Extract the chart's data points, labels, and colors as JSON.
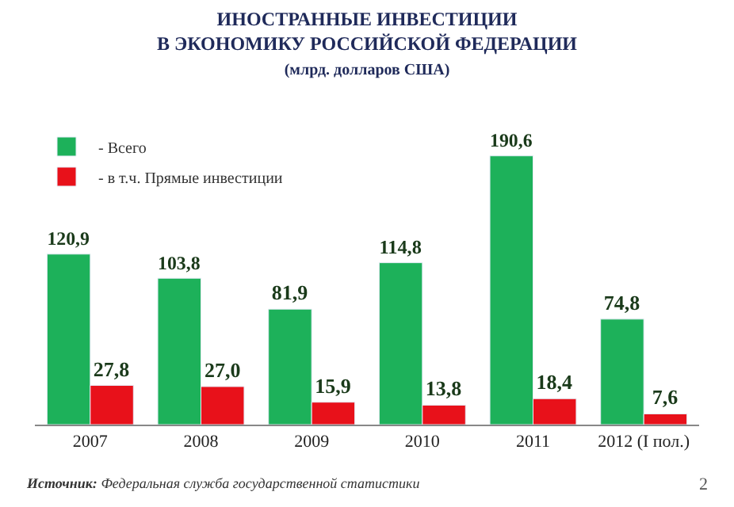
{
  "chart_data": {
    "type": "bar",
    "title": "ИНОСТРАННЫЕ ИНВЕСТИЦИИ\nВ ЭКОНОМИКУ РОССИЙСКОЙ ФЕДЕРАЦИИ",
    "subtitle": "(млрд. долларов США)",
    "categories": [
      "2007",
      "2008",
      "2009",
      "2010",
      "2011",
      "2012 (I пол.)"
    ],
    "series": [
      {
        "name": "- Всего",
        "color": "#1db15a",
        "values": [
          120.9,
          103.8,
          81.9,
          114.8,
          190.6,
          74.8
        ],
        "value_labels": [
          "120,9",
          "103,8",
          "81,9",
          "114,8",
          "190,6",
          "74,8"
        ]
      },
      {
        "name": "- в т.ч. Прямые инвестиции",
        "color": "#e8111a",
        "values": [
          27.8,
          27.0,
          15.9,
          13.8,
          18.4,
          7.6
        ],
        "value_labels": [
          "27,8",
          "27,0",
          "15,9",
          "13,8",
          "18,4",
          "7,6"
        ]
      }
    ],
    "legend": "top left",
    "annotations": [
      "Источник: Федеральная служба государственной статистики",
      "2"
    ]
  }
}
